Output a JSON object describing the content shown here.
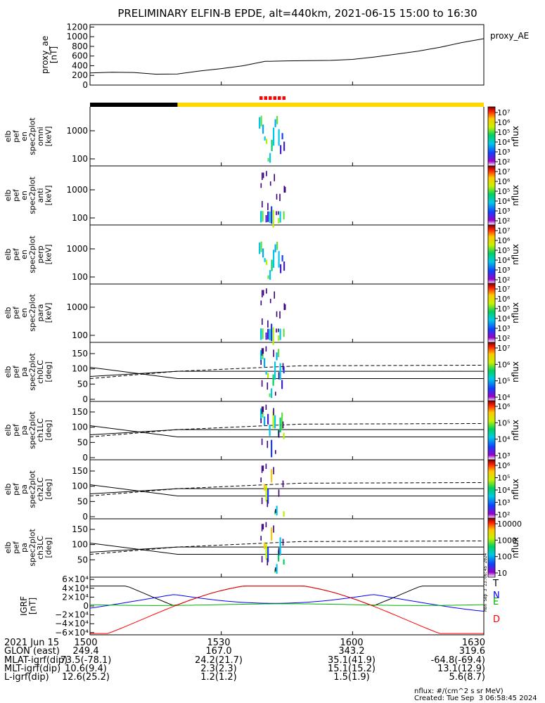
{
  "chart_data": {
    "type": "spectrogram-stack",
    "title": "PRELIMINARY ELFIN-B EPDE, alt=440km, 2021-06-15 15:00 to 16:30",
    "time_axis": {
      "start": "15:00",
      "end": "16:30",
      "ticks": [
        "1500",
        "1530",
        "1600",
        "1630"
      ]
    },
    "ae_panel": {
      "ylabel": [
        "proxy_ae",
        "[nT]"
      ],
      "yticks": [
        "1200",
        "1000",
        "800",
        "600",
        "400",
        "200",
        "0"
      ],
      "ylim": [
        0,
        1250
      ],
      "legend": "proxy_AE",
      "minutes": [
        0,
        5,
        10,
        15,
        20,
        25,
        30,
        35,
        40,
        45,
        50,
        55,
        60,
        65,
        70,
        75,
        80,
        85,
        90
      ],
      "values": [
        250,
        265,
        260,
        225,
        230,
        290,
        340,
        400,
        490,
        500,
        505,
        510,
        530,
        580,
        640,
        700,
        780,
        880,
        960
      ]
    },
    "bars": {
      "black_until_minute": 20,
      "yellow_from_minute": 20
    },
    "spec_panels": [
      {
        "label": [
          "elb",
          "pef",
          "en",
          "spec2plot",
          "omni",
          "[keV]"
        ],
        "yticks": [
          "1000",
          "100"
        ],
        "cbar": [
          "10⁷",
          "10⁶",
          "10⁵",
          "10⁴",
          "10³",
          "10²"
        ],
        "cunit": "nflux"
      },
      {
        "label": [
          "elb",
          "pef",
          "en",
          "spec2plot",
          "anti",
          "[keV]"
        ],
        "yticks": [
          "1000",
          "100"
        ],
        "cbar": [
          "10⁷",
          "10⁶",
          "10⁵",
          "10⁴",
          "10³",
          "10²"
        ],
        "cunit": "nflux"
      },
      {
        "label": [
          "elb",
          "pef",
          "en",
          "spec2plot",
          "perp",
          "[keV]"
        ],
        "yticks": [
          "1000",
          "100"
        ],
        "cbar": [
          "10⁷",
          "10⁶",
          "10⁵",
          "10⁴",
          "10³",
          "10²"
        ],
        "cunit": "nflux"
      },
      {
        "label": [
          "elb",
          "pef",
          "en",
          "spec2plot",
          "para",
          "[keV]"
        ],
        "yticks": [
          "1000",
          "100"
        ],
        "cbar": [
          "10⁷",
          "10⁶",
          "10⁵",
          "10⁴",
          "10³",
          "10²"
        ],
        "cunit": "nflux"
      }
    ],
    "pa_panels": [
      {
        "label": [
          "elb",
          "pef",
          "pa",
          "spec2plot",
          "ch0LC",
          "[deg]"
        ],
        "yticks": [
          "150",
          "100",
          "50",
          "0"
        ],
        "cbar": [
          "10⁷",
          "10⁶",
          "10⁵",
          "10⁴"
        ],
        "cunit": "nflux"
      },
      {
        "label": [
          "elb",
          "pef",
          "pa",
          "spec2plot",
          "ch1LC",
          "[deg]"
        ],
        "yticks": [
          "150",
          "100",
          "50",
          "0"
        ],
        "cbar": [
          "10⁶",
          "10⁵",
          "10⁴",
          "10³"
        ],
        "cunit": "nflux"
      },
      {
        "label": [
          "elb",
          "pef",
          "pa",
          "spec2plot",
          "ch2LC",
          "[deg]"
        ],
        "yticks": [
          "150",
          "100",
          "50",
          "0"
        ],
        "cbar": [
          "10⁶",
          "10⁵",
          "10⁴",
          "10³",
          "10²"
        ],
        "cunit": "nflux"
      },
      {
        "label": [
          "elb",
          "pef",
          "pa",
          "spec2plot",
          "ch3LC",
          "[deg]"
        ],
        "yticks": [
          "150",
          "100",
          "50"
        ],
        "cbar": [
          "10000",
          "1000",
          "100",
          "10"
        ],
        "cunit": "nflux"
      }
    ],
    "igrf_panel": {
      "ylabel": [
        "IGRF",
        "[nT]"
      ],
      "yticks": [
        "6×10⁴",
        "4×10⁴",
        "2×10⁴",
        "0",
        "−2×10⁴",
        "−4×10⁴",
        "−6×10⁴"
      ],
      "ylim": [
        -65000,
        65000
      ],
      "legend": [
        {
          "name": "T",
          "color": "#000000"
        },
        {
          "name": "N",
          "color": "#0000ff"
        },
        {
          "name": "E",
          "color": "#00b000"
        },
        {
          "name": "D",
          "color": "#ff0000"
        }
      ]
    },
    "side_stamp": "Mon Sep  3 23:06:45 2024"
  },
  "footer": {
    "rows": [
      {
        "label": "2021 Jun 15",
        "cells": [
          "1500",
          "1530",
          "1600",
          "1630"
        ]
      },
      {
        "label": "GLON (east)",
        "cells": [
          "249.4",
          "167.0",
          "343.2",
          "319.6"
        ]
      },
      {
        "label": "MLAT-igrf(dip)",
        "cells": [
          "73.5(-78.1)",
          "24.2(21.7)",
          "35.1(41.9)",
          "-64.8(-69.4)"
        ]
      },
      {
        "label": "MLT-igrf(dip)",
        "cells": [
          "10.6(9.4)",
          "2.3(2.3)",
          "15.1(15.2)",
          "13.1(12.9)"
        ]
      },
      {
        "label": "L-igrf(dip)",
        "cells": [
          "12.6(25.2)",
          "1.2(1.2)",
          "1.5(1.9)",
          "5.6(8.7)"
        ]
      }
    ],
    "units_note": "nflux: #/(cm^2 s sr MeV)",
    "created": "Created: Tue Sep  3 06:58:45 2024"
  },
  "colors": {
    "bar_black": "#000000",
    "bar_yellow": "#ffd800",
    "flag_red": "#ff0000"
  }
}
